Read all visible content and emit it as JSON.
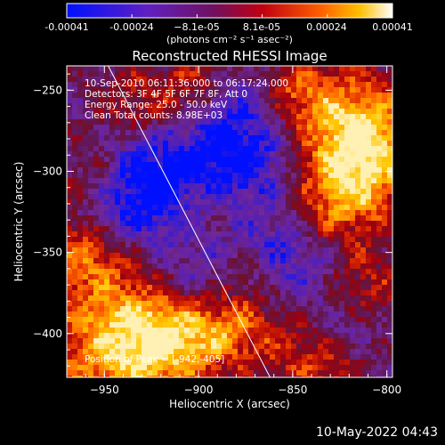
{
  "colorbar": {
    "ticks": [
      "-0.00041",
      "-0.00024",
      "−8.1e-05",
      "8.1e-05",
      "0.00024",
      "0.00041"
    ],
    "units_line": "(photons cm⁻² s⁻¹ asec⁻²)"
  },
  "info": {
    "line1": "10-Sep-2010 06:11:36.000 to 06:17:24.000",
    "line2": "Detectors: 3F 4F 5F 6F 7F 8F, Att 0",
    "line3": "Energy Range: 25.0 - 50.0 keV",
    "line4": "Clean     Total counts: 8.98E+03",
    "peak": "Position of Peak = [-942,-405]"
  },
  "timestamp": "10-May-2022 04:43",
  "colors": {
    "background": "#000000",
    "frame": "#ffffff"
  },
  "chart_data": {
    "type": "heatmap",
    "title": "Reconstructed RHESSI Image",
    "xlabel": "Heliocentric X (arcsec)",
    "ylabel": "Heliocentric Y (arcsec)",
    "xlim": [
      -970,
      -797
    ],
    "ylim": [
      -427,
      -235
    ],
    "xticks": [
      -950,
      -900,
      -850,
      -800
    ],
    "yticks": [
      -250,
      -300,
      -350,
      -400
    ],
    "xtick_labels": [
      "−950",
      "−900",
      "−850",
      "−800"
    ],
    "ytick_labels": [
      "−250",
      "−300",
      "−350",
      "−400"
    ],
    "colorbar_range": [
      -0.00041,
      0.00041
    ],
    "limb_line": [
      [
        -948,
        -235
      ],
      [
        -862,
        -427
      ]
    ],
    "peak_position": [
      -942,
      -405
    ]
  }
}
